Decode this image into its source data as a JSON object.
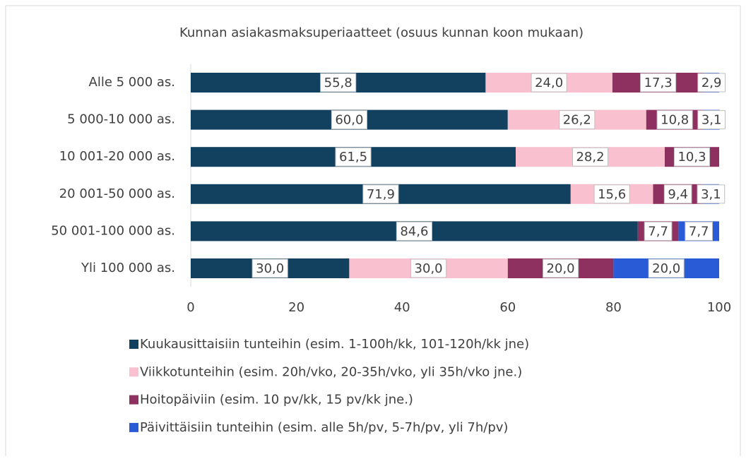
{
  "chart_data": {
    "type": "stacked-bar-horizontal",
    "title": "Kunnan asiakasmaksuperiaatteet (osuus kunnan koon mukaan)",
    "categories": [
      "Alle 5 000 as.",
      "5 000-10 000 as.",
      "10 001-20 000 as.",
      "20 001-50 000 as.",
      "50 001-100 000 as.",
      "Yli 100 000 as."
    ],
    "series": [
      {
        "name": "Kuukausittaisiin tunteihin (esim. 1-100h/kk, 101-120h/kk jne)",
        "color": "#12405f",
        "values": [
          55.8,
          60.0,
          61.5,
          71.9,
          84.6,
          30.0
        ],
        "value_labels": [
          "55,8",
          "60,0",
          "61,5",
          "71,9",
          "84,6",
          "30,0"
        ]
      },
      {
        "name": "Viikkotunteihin (esim. 20h/vko, 20-35h/vko, yli 35h/vko jne.)",
        "color": "#f9c0cf",
        "values": [
          24.0,
          26.2,
          28.2,
          15.6,
          null,
          30.0
        ],
        "value_labels": [
          "24,0",
          "26,2",
          "28,2",
          "15,6",
          null,
          "30,0"
        ]
      },
      {
        "name": "Hoitopäiviin (esim. 10 pv/kk, 15 pv/kk jne.)",
        "color": "#8e3060",
        "values": [
          17.3,
          10.8,
          10.3,
          9.4,
          7.7,
          20.0
        ],
        "value_labels": [
          "17,3",
          "10,8",
          "10,3",
          "9,4",
          "7,7",
          "20,0"
        ]
      },
      {
        "name": "Päivittäisiin tunteihin (esim. alle 5h/pv, 5-7h/pv, yli 7h/pv)",
        "color": "#2a5bd7",
        "values": [
          2.9,
          3.1,
          null,
          3.1,
          7.7,
          20.0
        ],
        "value_labels": [
          "2,9",
          "3,1",
          null,
          "3,1",
          "7,7",
          "20,0"
        ]
      }
    ],
    "xlim": [
      0,
      100
    ],
    "xticks": [
      0,
      20,
      40,
      60,
      80,
      100
    ]
  }
}
